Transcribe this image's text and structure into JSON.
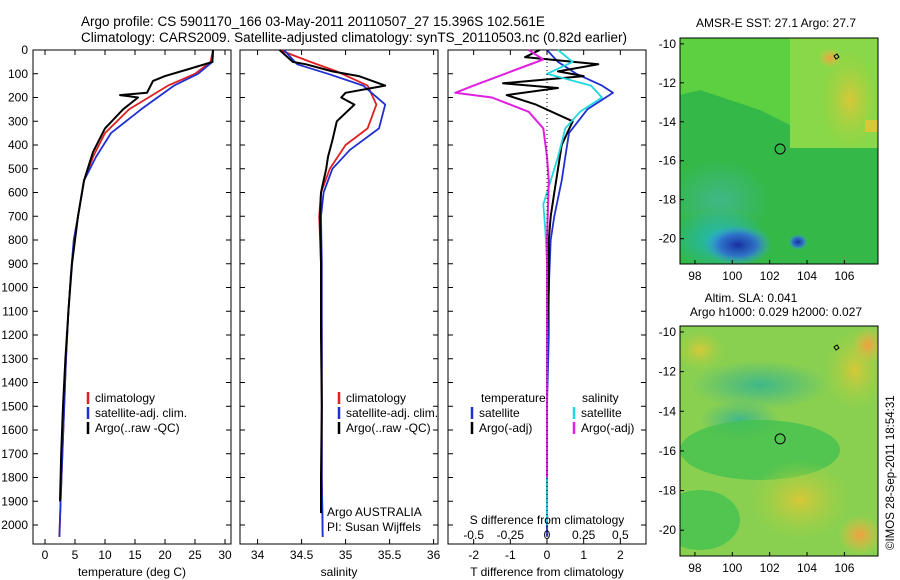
{
  "header": {
    "line1": "Argo profile: CS 5901170_166 03-May-2011 20110507_27 15.396S 102.561E",
    "line2": "Climatology: CARS2009. Satellite-adjusted climatology: synTS_20110503.nc (0.82d earlier)"
  },
  "legend_items": {
    "climatology": "climatology",
    "satellite_adj": "satellite-adj. clim.",
    "argo_raw": "Argo(..raw -QC)",
    "temperature": "temperature",
    "salinity": "salinity",
    "satellite": "satellite",
    "argo_adj": "Argo(-adj)"
  },
  "colors": {
    "climatology": "#e02020",
    "satellite_adj": "#2030d0",
    "argo": "#000000",
    "sal_satellite": "#20d8e0",
    "sal_argo": "#e020e0"
  },
  "annotations": {
    "argo_country": "Argo AUSTRALIA",
    "pi": "PI: Susan Wijffels",
    "copyright": "©IMOS 28-Sep-2011 18:54:31"
  },
  "chart_data": [
    {
      "type": "line",
      "panel": "temperature",
      "xlabel": "temperature (deg C)",
      "xlim": [
        -2,
        31
      ],
      "xticks": [
        0,
        5,
        10,
        15,
        20,
        25,
        30
      ],
      "ylim": [
        2080,
        0
      ],
      "yticks": [
        0,
        100,
        200,
        300,
        400,
        500,
        600,
        700,
        800,
        900,
        1000,
        1100,
        1200,
        1300,
        1400,
        1500,
        1600,
        1700,
        1800,
        1900,
        2000
      ],
      "series": [
        {
          "name": "climatology",
          "x": [
            28.0,
            27.6,
            25.0,
            20.5,
            14.0,
            10.0,
            8.0,
            6.5,
            5.5,
            4.8,
            4.3,
            3.9,
            3.5,
            3.2,
            2.9,
            2.6,
            2.4
          ],
          "y": [
            0,
            50,
            100,
            150,
            250,
            350,
            450,
            550,
            700,
            800,
            950,
            1100,
            1300,
            1500,
            1700,
            1900,
            2050
          ]
        },
        {
          "name": "satellite-adj. clim.",
          "x": [
            28.0,
            27.9,
            25.5,
            21.5,
            16.0,
            11.0,
            8.5,
            6.5,
            5.5,
            4.8,
            4.3,
            3.9,
            3.5,
            3.2,
            2.9,
            2.6,
            2.4
          ],
          "y": [
            0,
            50,
            100,
            150,
            250,
            350,
            450,
            550,
            700,
            800,
            950,
            1100,
            1300,
            1500,
            1700,
            1900,
            2050
          ]
        },
        {
          "name": "Argo(..raw -QC)",
          "x": [
            28.0,
            27.9,
            24.0,
            20.0,
            18.0,
            17.0,
            12.5,
            15.5,
            13.0,
            10.0,
            8.0,
            6.5,
            5.5,
            4.5,
            3.9,
            3.4,
            3.0,
            2.7,
            2.5
          ],
          "y": [
            0,
            50,
            80,
            110,
            130,
            180,
            190,
            200,
            250,
            330,
            430,
            550,
            700,
            900,
            1100,
            1300,
            1500,
            1700,
            1900
          ]
        }
      ]
    },
    {
      "type": "line",
      "panel": "salinity",
      "xlabel": "salinity",
      "xlim": [
        33.8,
        36.05
      ],
      "xticks": [
        34,
        34.5,
        35,
        35.5,
        36
      ],
      "ylim": [
        2080,
        0
      ],
      "series": [
        {
          "name": "climatology",
          "x": [
            34.25,
            34.6,
            34.9,
            35.25,
            35.35,
            35.25,
            35.0,
            34.82,
            34.72,
            34.7,
            34.72,
            34.73,
            34.73,
            34.73,
            34.74
          ],
          "y": [
            0,
            50,
            90,
            150,
            230,
            330,
            400,
            500,
            600,
            700,
            900,
            1200,
            1500,
            1800,
            2050
          ]
        },
        {
          "name": "satellite-adj. clim.",
          "x": [
            34.3,
            34.45,
            34.8,
            35.2,
            35.45,
            35.38,
            35.05,
            34.85,
            34.75,
            34.72,
            34.73,
            34.73,
            34.73,
            34.73,
            34.74
          ],
          "y": [
            0,
            60,
            100,
            150,
            230,
            330,
            420,
            500,
            600,
            700,
            900,
            1200,
            1500,
            1800,
            2050
          ]
        },
        {
          "name": "Argo(..raw -QC)",
          "x": [
            34.25,
            34.4,
            34.55,
            34.85,
            35.15,
            35.45,
            35.0,
            34.95,
            35.1,
            34.9,
            34.85,
            34.8,
            34.78,
            34.72,
            34.71,
            34.72,
            34.72,
            34.73,
            34.72,
            34.72
          ],
          "y": [
            0,
            50,
            60,
            90,
            110,
            150,
            180,
            200,
            230,
            300,
            380,
            450,
            500,
            600,
            700,
            900,
            1200,
            1500,
            1800,
            1950
          ]
        }
      ]
    },
    {
      "type": "line",
      "panel": "difference",
      "xlabel": "T difference from climatology",
      "xlabel2": "S difference from climatology",
      "xlim": [
        -2.7,
        2.7
      ],
      "xticks": [
        -2,
        -1,
        0,
        1,
        2
      ],
      "xticks2_values": [
        -0.5,
        -0.25,
        0,
        0.25,
        0.5
      ],
      "xticks2_labels": [
        "-0.5",
        "-0.25",
        "0",
        "0.25",
        "0.5"
      ],
      "ylim": [
        2080,
        0
      ],
      "series": [
        {
          "name": "temperature satellite",
          "x": [
            0,
            0.3,
            0.8,
            1.5,
            1.8,
            1.1,
            0.6,
            0.5,
            0.4,
            0.2,
            0.1,
            0.05,
            0.05,
            0.0,
            0.0,
            0.0,
            0.0
          ],
          "y": [
            0,
            50,
            100,
            150,
            180,
            250,
            350,
            450,
            550,
            700,
            800,
            1000,
            1200,
            1500,
            1700,
            1900,
            2050
          ]
        },
        {
          "name": "temperature Argo(-adj)",
          "x": [
            -0.2,
            -0.6,
            1.4,
            0.3,
            1.0,
            -1.2,
            0.3,
            -1.1,
            -0.3,
            0.7,
            0.4,
            0.3,
            0.2,
            0.1,
            0.05,
            0.05,
            0.0,
            0.0,
            0.0
          ],
          "y": [
            0,
            30,
            60,
            90,
            110,
            140,
            160,
            190,
            230,
            300,
            400,
            500,
            600,
            700,
            800,
            1000,
            1200,
            1500,
            1900
          ]
        },
        {
          "name": "salinity satellite",
          "x": [
            0.3,
            0.7,
            0.0,
            1.2,
            1.5,
            0.9,
            0.5,
            0.3,
            0.1,
            -0.1,
            -0.05,
            0.0,
            0.0,
            0.0,
            0.0
          ],
          "y": [
            0,
            50,
            100,
            150,
            200,
            260,
            330,
            450,
            550,
            650,
            750,
            900,
            1200,
            1600,
            2000
          ]
        },
        {
          "name": "salinity Argo(-adj)",
          "x": [
            -0.5,
            -0.1,
            -0.8,
            -2.0,
            -2.5,
            -1.5,
            -0.5,
            -0.1,
            0.0,
            0.05,
            0.0,
            0.0,
            0.0
          ],
          "y": [
            0,
            40,
            80,
            150,
            180,
            200,
            260,
            330,
            450,
            550,
            800,
            1200,
            1800
          ]
        }
      ]
    },
    {
      "type": "heatmap",
      "panel": "sst_map",
      "title": "AMSR-E SST: 27.1  Argo: 27.7",
      "xlim": [
        97.2,
        107.8
      ],
      "ylim": [
        -21.3,
        -9.7
      ],
      "xticks": [
        98,
        100,
        102,
        104,
        106
      ],
      "yticks": [
        -10,
        -12,
        -14,
        -16,
        -18,
        -20
      ],
      "marker": {
        "lon": 102.561,
        "lat": -15.396
      }
    },
    {
      "type": "heatmap",
      "panel": "sla_map",
      "title": "Altim. SLA: 0.041",
      "subtitle": "Argo h1000: 0.029 h2000: 0.027",
      "xlim": [
        97.2,
        107.8
      ],
      "ylim": [
        -21.3,
        -9.7
      ],
      "xticks": [
        98,
        100,
        102,
        104,
        106
      ],
      "yticks": [
        -10,
        -12,
        -14,
        -16,
        -18,
        -20
      ],
      "marker": {
        "lon": 102.561,
        "lat": -15.396
      }
    }
  ]
}
